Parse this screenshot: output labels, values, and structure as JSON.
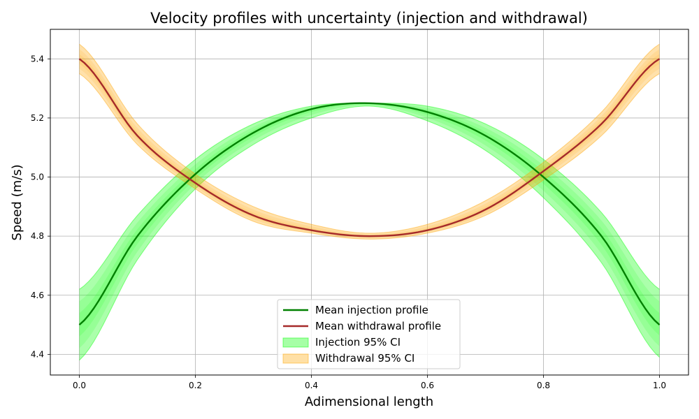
{
  "chart_data": {
    "type": "line",
    "title": "Velocity profiles with uncertainty (injection and withdrawal)",
    "xlabel": "Adimensional length",
    "ylabel": "Speed (m/s)",
    "xlim": [
      -0.05,
      1.05
    ],
    "ylim": [
      4.33,
      5.5
    ],
    "xticks": [
      0.0,
      0.2,
      0.4,
      0.6,
      0.8,
      1.0
    ],
    "xtick_labels": [
      "0.0",
      "0.2",
      "0.4",
      "0.6",
      "0.8",
      "1.0"
    ],
    "yticks": [
      4.4,
      4.6,
      4.8,
      5.0,
      5.2,
      5.4
    ],
    "ytick_labels": [
      "4.4",
      "4.6",
      "4.8",
      "5.0",
      "5.2",
      "5.4"
    ],
    "grid": true,
    "legend_position": "lower center",
    "x": [
      0.0,
      0.1,
      0.2,
      0.3,
      0.4,
      0.5,
      0.6,
      0.7,
      0.8,
      0.9,
      1.0
    ],
    "series": [
      {
        "name": "Mean injection profile",
        "kind": "line",
        "color": "#008000",
        "values": [
          4.5,
          4.8,
          5.01,
          5.15,
          5.23,
          5.25,
          5.22,
          5.14,
          5.0,
          4.8,
          4.5
        ]
      },
      {
        "name": "Mean withdrawal profile",
        "kind": "line",
        "color": "#a52a2a",
        "values": [
          5.4,
          5.14,
          4.98,
          4.87,
          4.82,
          4.8,
          4.82,
          4.89,
          5.02,
          5.18,
          5.4
        ]
      }
    ],
    "bands": [
      {
        "name": "Injection 95% CI",
        "color": "#00ff00",
        "lower": [
          4.38,
          4.72,
          4.96,
          5.11,
          5.2,
          5.24,
          5.19,
          5.09,
          4.93,
          4.71,
          4.39
        ],
        "upper": [
          4.62,
          4.87,
          5.06,
          5.18,
          5.24,
          5.25,
          5.24,
          5.18,
          5.06,
          4.88,
          4.62
        ]
      },
      {
        "name": "Withdrawal 95% CI",
        "color": "#ffa500",
        "lower": [
          5.35,
          5.11,
          4.96,
          4.85,
          4.81,
          4.79,
          4.81,
          4.87,
          4.99,
          5.14,
          5.35
        ],
        "upper": [
          5.45,
          5.18,
          5.01,
          4.9,
          4.84,
          4.81,
          4.84,
          4.92,
          5.05,
          5.22,
          5.45
        ]
      }
    ],
    "legend": [
      {
        "label": "Mean injection profile",
        "kind": "line",
        "color": "#008000"
      },
      {
        "label": "Mean withdrawal profile",
        "kind": "line",
        "color": "#a52a2a"
      },
      {
        "label": "Injection 95% CI",
        "kind": "patch",
        "color": "#00ff00"
      },
      {
        "label": "Withdrawal 95% CI",
        "kind": "patch",
        "color": "#ffa500"
      }
    ]
  }
}
